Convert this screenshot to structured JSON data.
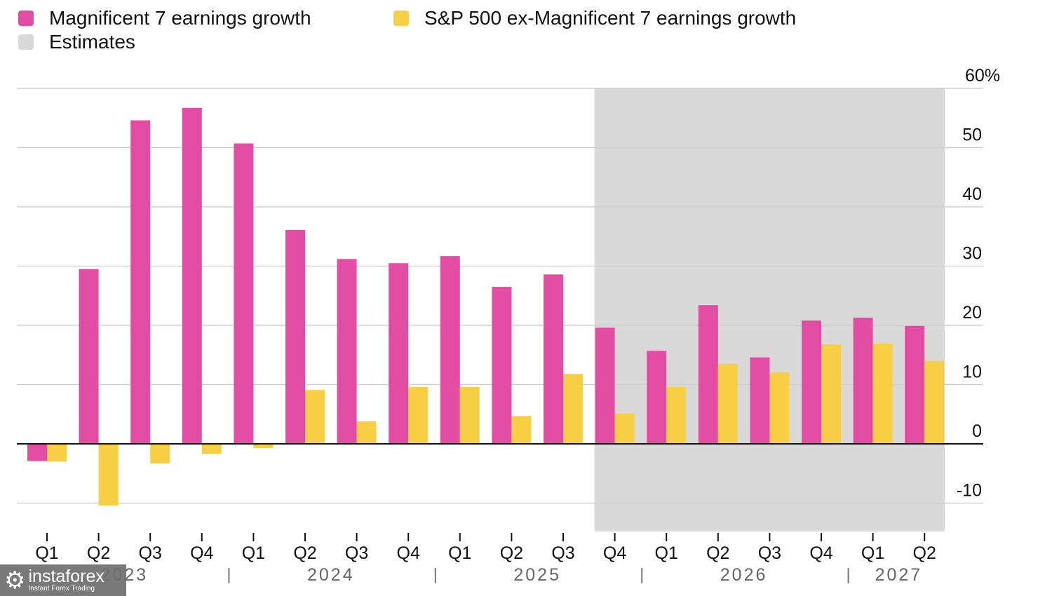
{
  "chart_data": {
    "type": "bar",
    "title": "",
    "xlabel": "",
    "ylabel": "",
    "y_unit": "%",
    "ylim": [
      -15,
      60
    ],
    "yticks": [
      60,
      50,
      40,
      30,
      20,
      10,
      0,
      -10
    ],
    "ytick_labels": [
      "60%",
      "50",
      "40",
      "30",
      "20",
      "10",
      "0",
      "-10"
    ],
    "y_axis_side": "right",
    "grid": true,
    "legend_position": "top-left",
    "categories": [
      "Q1",
      "Q2",
      "Q3",
      "Q4",
      "Q1",
      "Q2",
      "Q3",
      "Q4",
      "Q1",
      "Q2",
      "Q3",
      "Q4",
      "Q1",
      "Q2",
      "Q3",
      "Q4",
      "Q1",
      "Q2"
    ],
    "years": [
      {
        "label": "2023",
        "start_index": 0,
        "end_index": 3
      },
      {
        "label": "2024",
        "start_index": 4,
        "end_index": 7
      },
      {
        "label": "2025",
        "start_index": 8,
        "end_index": 11
      },
      {
        "label": "2026",
        "start_index": 12,
        "end_index": 15
      },
      {
        "label": "2027",
        "start_index": 16,
        "end_index": 17
      }
    ],
    "year_separators_before_index": [
      4,
      8,
      12,
      16
    ],
    "estimates_range": {
      "start_index": 11,
      "end_index": 17
    },
    "series": [
      {
        "name": "Magnificent 7 earnings growth",
        "color": "#e34ca3",
        "values": [
          -2.9,
          29.5,
          54.6,
          56.7,
          50.7,
          36.1,
          31.2,
          30.5,
          31.7,
          26.5,
          28.6,
          19.6,
          15.7,
          23.4,
          14.6,
          20.8,
          21.3,
          19.9
        ]
      },
      {
        "name": "S&P 500 ex-Magnificent 7 earnings growth",
        "color": "#f6cf44",
        "values": [
          -3.0,
          -10.4,
          -3.3,
          -1.7,
          -0.7,
          9.1,
          3.8,
          9.6,
          9.6,
          4.7,
          11.8,
          5.1,
          9.6,
          13.5,
          12.1,
          16.8,
          16.9,
          14.0
        ]
      }
    ],
    "legend": [
      {
        "label": "Magnificent 7 earnings growth",
        "color": "#e34ca3"
      },
      {
        "label": "S&P 500 ex-Magnificent 7 earnings growth",
        "color": "#f6cf44"
      },
      {
        "label": "Estimates",
        "color": "#d9d9d9"
      }
    ]
  },
  "watermark": {
    "brand": "instaforex",
    "tagline": "Instant Forex Trading"
  }
}
